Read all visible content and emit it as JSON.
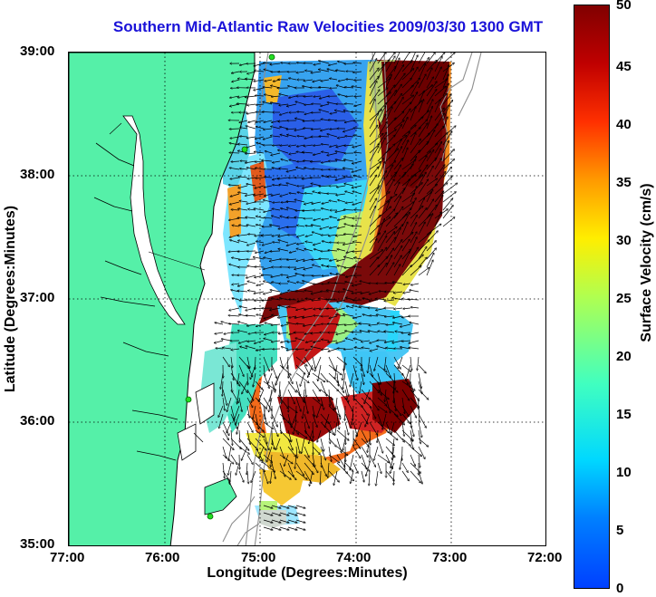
{
  "title": "Southern Mid-Atlantic Raw Velocities 2009/03/30 1300 GMT",
  "x_axis": {
    "label": "Longitude (Degrees:Minutes)",
    "ticks": [
      "77:00",
      "76:00",
      "75:00",
      "74:00",
      "73:00",
      "72:00"
    ]
  },
  "y_axis": {
    "label": "Latitude (Degrees:Minutes)",
    "ticks": [
      "39:00",
      "38:00",
      "37:00",
      "36:00",
      "35:00"
    ]
  },
  "colorbar": {
    "label": "Surface Velocity (cm/s)",
    "ticks": [
      "0",
      "5",
      "10",
      "15",
      "20",
      "25",
      "30",
      "35",
      "40",
      "45",
      "50"
    ],
    "range": [
      0,
      50
    ],
    "colormap": "jet"
  },
  "map": {
    "lon_range": [
      -77,
      -72
    ],
    "lat_range": [
      35,
      39
    ],
    "land_color": "#55f0a8",
    "grid": "dotted",
    "features": [
      "coastline",
      "bathymetry-contours",
      "velocity-vectors",
      "radar-sites"
    ]
  }
}
